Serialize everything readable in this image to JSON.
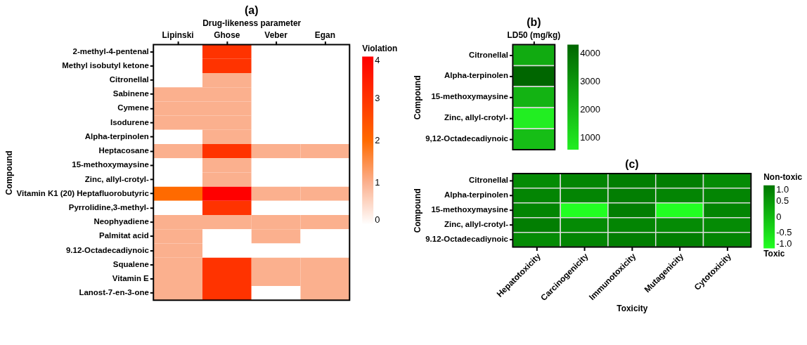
{
  "chart_data": [
    {
      "type": "heatmap",
      "title": "(a)",
      "xlabel": "Drug-likeness parameter",
      "ylabel": "Compound",
      "clabel": "Violation",
      "categories": [
        "Lipinski",
        "Ghose",
        "Veber",
        "Egan"
      ],
      "y_categories": [
        "2-methyl-4-pentenal",
        "Methyl isobutyl ketone",
        "Citronellal",
        "Sabinene",
        "Cymene",
        "Isodurene",
        "Alpha-terpinolen",
        "Heptacosane",
        "15-methoxymaysine",
        "Zinc, allyl-crotyl-",
        "Vitamin K1 (20) Heptafluorobutyric",
        "Pyrrolidine,3-methyl-",
        "Neophyadiene",
        "Palmitat acid",
        "9.12-Octadecadiynoic",
        "Squalene",
        "Vitamin E",
        "Lanost-7-en-3-one"
      ],
      "cells": [
        [
          0,
          3,
          0,
          0
        ],
        [
          0,
          3,
          0,
          0
        ],
        [
          0,
          1,
          0,
          0
        ],
        [
          1,
          1,
          0,
          0
        ],
        [
          1,
          1,
          0,
          0
        ],
        [
          1,
          1,
          0,
          0
        ],
        [
          0,
          1,
          0,
          0
        ],
        [
          1,
          3,
          1,
          1
        ],
        [
          0,
          1,
          0,
          0
        ],
        [
          0,
          1,
          0,
          0
        ],
        [
          2,
          4,
          1,
          1
        ],
        [
          0,
          3,
          0,
          0
        ],
        [
          1,
          1,
          1,
          1
        ],
        [
          1,
          0,
          1,
          0
        ],
        [
          1,
          0,
          0,
          0
        ],
        [
          1,
          3,
          1,
          1
        ],
        [
          1,
          3,
          1,
          1
        ],
        [
          1,
          3,
          0,
          1
        ]
      ],
      "clim": [
        0,
        4
      ],
      "cticks": [
        0,
        1,
        2,
        3,
        4
      ]
    },
    {
      "type": "heatmap",
      "title": "(b)",
      "ylabel": "Compound",
      "categories": [
        "LD50 (mg/kg)"
      ],
      "y_categories": [
        "Citronellal",
        "Alpha-terpinolen",
        "15-methoxymaysine",
        "Zinc, allyl-crotyl-",
        "9,12-Octadecadiynoic"
      ],
      "cells": [
        [
          2420
        ],
        [
          4320
        ],
        [
          2200
        ],
        [
          560
        ],
        [
          1900
        ]
      ],
      "clim": [
        560,
        4320
      ],
      "cticks": [
        1000,
        2000,
        3000,
        4000
      ]
    },
    {
      "type": "heatmap",
      "title": "(c)",
      "xlabel": "Toxicity",
      "ylabel": "Compound",
      "clabel": "Non-toxic",
      "categories": [
        "Hepatotoxicity",
        "Carcinogenicity",
        "Immunotoxicity",
        "Mutagenicity",
        "Cytotoxicity"
      ],
      "y_categories": [
        "Citronellal",
        "Alpha-terpinolen",
        "15-methoxymaysine",
        "Zinc, allyl-crotyl-",
        "9.12-Octadecadiynoic"
      ],
      "cells": [
        [
          0.7,
          0.8,
          0.9,
          0.9,
          0.7
        ],
        [
          0.8,
          0.8,
          0.9,
          0.8,
          0.8
        ],
        [
          0.8,
          -1.0,
          0.9,
          -1.0,
          0.8
        ],
        [
          0.9,
          0.7,
          0.8,
          0.7,
          0.7
        ],
        [
          0.7,
          0.8,
          0.9,
          0.9,
          0.8
        ]
      ],
      "clim": [
        -1,
        1
      ],
      "cticks": [
        {
          "value": 1,
          "label": "1.0"
        },
        {
          "value": 0.5,
          "label": "0.5"
        },
        {
          "value": 0,
          "label": "0"
        },
        {
          "value": -0.5,
          "label": "-0.5"
        },
        {
          "value": -1,
          "label": "-1.0"
        }
      ],
      "annotations": [
        "Toxic"
      ]
    }
  ]
}
